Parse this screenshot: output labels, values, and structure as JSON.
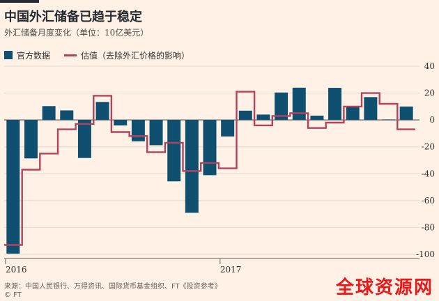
{
  "header": {
    "title": "中国外汇储备已趋于稳定",
    "subtitle": "外汇储备月度变化（单位：10亿美元）"
  },
  "legend": {
    "bar_label": "官方数据",
    "line_label": "估值（去除外汇价格的影响）"
  },
  "colors": {
    "background": "#fff1e5",
    "bar": "#0f5070",
    "line": "#b0445f",
    "grid": "#e4d7cb",
    "axis_text": "#33302e",
    "watermark": "#e8191a"
  },
  "chart_data": {
    "type": "bar",
    "title": "中国外汇储备已趋于稳定",
    "subtitle": "外汇储备月度变化（单位：10亿美元）",
    "ylim": [
      -100,
      40
    ],
    "y_ticks": [
      40,
      20,
      0,
      -20,
      -40,
      -60,
      -80,
      -100
    ],
    "y_tick_labels": [
      "40",
      "20",
      "0",
      "-20",
      "-40",
      "-60",
      "-80",
      "-100"
    ],
    "x_tick_labels": [
      "2016",
      "2017"
    ],
    "x_tick_positions": [
      0,
      12
    ],
    "grid": true,
    "legend_position": "top-left",
    "y_axis_side": "right",
    "series": [
      {
        "name": "官方数据",
        "kind": "bar",
        "values": [
          -99.5,
          -28.6,
          10.3,
          7.1,
          -28.3,
          13.4,
          -4.1,
          -15.9,
          -18.8,
          -45.7,
          -69.1,
          -41.1,
          -12.3,
          6.9,
          4.0,
          20.4,
          24.0,
          3.2,
          23.9,
          10.0,
          17.0,
          0.4,
          10.0
        ]
      },
      {
        "name": "估值（去除外汇价格的影响）",
        "kind": "step-line",
        "values": [
          -93,
          -37,
          -25,
          -7,
          -3,
          18,
          -9,
          -12,
          -24,
          -17,
          -38,
          -32,
          -36,
          21,
          -4,
          3,
          5,
          -6,
          -2,
          10,
          20,
          12,
          -7
        ]
      }
    ]
  },
  "source": "来源：中国人民银行、万得资讯、国际货币基金组织、FT《投资参考》",
  "credit": "© FT",
  "watermark": "全球资源网"
}
